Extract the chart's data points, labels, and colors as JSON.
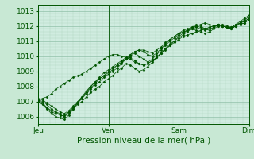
{
  "bg_color": "#c8e8d4",
  "plot_bg_color": "#d0ece0",
  "grid_color_minor": "#b0d8c0",
  "grid_color_major": "#90c0a8",
  "line_color": "#005500",
  "xlabel": "Pression niveau de la mer( hPa )",
  "xlabel_fontsize": 7.5,
  "ylim": [
    1005.5,
    1013.4
  ],
  "yticks": [
    1006,
    1007,
    1008,
    1009,
    1010,
    1011,
    1012,
    1013
  ],
  "xtick_labels": [
    "Jeu",
    "Ven",
    "Sam",
    "Dim"
  ],
  "xtick_positions": [
    0,
    96,
    192,
    288
  ],
  "total_hours": 288,
  "tick_fontsize": 6.5,
  "series": [
    [
      1007.1,
      1007.0,
      1006.8,
      1006.5,
      1006.3,
      1006.1,
      1006.0,
      1006.2,
      1006.5,
      1006.8,
      1007.0,
      1007.3,
      1007.6,
      1007.8,
      1008.0,
      1008.3,
      1008.5,
      1008.7,
      1009.0,
      1009.2,
      1009.5,
      1009.4,
      1009.2,
      1009.0,
      1009.1,
      1009.3,
      1009.6,
      1009.9,
      1010.2,
      1010.5,
      1010.7,
      1011.0,
      1011.3,
      1011.5,
      1011.7,
      1011.9,
      1012.1,
      1012.0,
      1011.8,
      1011.7,
      1011.9,
      1012.1,
      1012.0,
      1011.9,
      1011.8,
      1012.0,
      1012.2,
      1012.4,
      1012.6
    ],
    [
      1007.1,
      1006.9,
      1006.6,
      1006.3,
      1006.2,
      1006.1,
      1006.0,
      1006.3,
      1006.6,
      1006.9,
      1007.2,
      1007.5,
      1007.8,
      1008.1,
      1008.3,
      1008.6,
      1008.8,
      1009.0,
      1009.2,
      1009.5,
      1009.8,
      1010.0,
      1010.2,
      1010.0,
      1009.8,
      1009.6,
      1009.8,
      1010.1,
      1010.4,
      1010.7,
      1011.0,
      1011.2,
      1011.4,
      1011.6,
      1011.7,
      1011.8,
      1011.7,
      1011.6,
      1011.5,
      1011.6,
      1011.8,
      1012.0,
      1012.1,
      1012.0,
      1011.9,
      1012.1,
      1012.3,
      1012.5,
      1012.7
    ],
    [
      1007.0,
      1006.8,
      1006.5,
      1006.2,
      1006.0,
      1005.9,
      1005.8,
      1006.1,
      1006.5,
      1006.9,
      1007.3,
      1007.7,
      1008.0,
      1008.3,
      1008.5,
      1008.7,
      1008.9,
      1009.1,
      1009.4,
      1009.6,
      1009.8,
      1010.1,
      1010.3,
      1010.4,
      1010.3,
      1010.1,
      1010.0,
      1010.2,
      1010.5,
      1010.8,
      1011.1,
      1011.3,
      1011.5,
      1011.7,
      1011.8,
      1011.9,
      1012.0,
      1011.9,
      1011.8,
      1011.9,
      1012.0,
      1012.1,
      1012.0,
      1011.9,
      1011.8,
      1012.0,
      1012.2,
      1012.3,
      1012.5
    ],
    [
      1007.2,
      1007.1,
      1006.9,
      1006.7,
      1006.5,
      1006.3,
      1006.2,
      1006.4,
      1006.7,
      1007.0,
      1007.3,
      1007.6,
      1007.9,
      1008.2,
      1008.5,
      1008.7,
      1009.0,
      1009.2,
      1009.4,
      1009.6,
      1009.8,
      1009.9,
      1009.7,
      1009.5,
      1009.4,
      1009.5,
      1009.7,
      1009.9,
      1010.2,
      1010.5,
      1010.8,
      1011.0,
      1011.2,
      1011.4,
      1011.6,
      1011.8,
      1012.0,
      1012.1,
      1012.2,
      1012.1,
      1012.0,
      1012.1,
      1012.0,
      1011.9,
      1011.9,
      1012.1,
      1012.2,
      1012.3,
      1012.5
    ],
    [
      1007.1,
      1007.2,
      1007.3,
      1007.5,
      1007.8,
      1008.0,
      1008.2,
      1008.4,
      1008.6,
      1008.7,
      1008.8,
      1009.0,
      1009.2,
      1009.4,
      1009.6,
      1009.8,
      1010.0,
      1010.1,
      1010.1,
      1010.0,
      1009.9,
      1009.8,
      1009.6,
      1009.5,
      1009.4,
      1009.5,
      1009.7,
      1009.9,
      1010.2,
      1010.4,
      1010.7,
      1010.9,
      1011.1,
      1011.3,
      1011.4,
      1011.5,
      1011.6,
      1011.7,
      1011.8,
      1011.9,
      1012.0,
      1012.0,
      1012.0,
      1011.9,
      1011.9,
      1012.0,
      1012.1,
      1012.2,
      1012.4
    ],
    [
      1007.0,
      1006.8,
      1006.6,
      1006.4,
      1006.3,
      1006.2,
      1006.1,
      1006.3,
      1006.6,
      1006.9,
      1007.2,
      1007.6,
      1008.0,
      1008.3,
      1008.6,
      1008.9,
      1009.1,
      1009.3,
      1009.5,
      1009.7,
      1009.9,
      1010.1,
      1010.3,
      1010.4,
      1010.4,
      1010.3,
      1010.2,
      1010.4,
      1010.6,
      1010.9,
      1011.1,
      1011.3,
      1011.5,
      1011.6,
      1011.7,
      1011.8,
      1011.9,
      1011.8,
      1011.7,
      1011.8,
      1011.9,
      1012.1,
      1012.0,
      1011.9,
      1011.8,
      1012.0,
      1012.1,
      1012.2,
      1012.4
    ]
  ],
  "marker": "D",
  "markersize": 1.5,
  "linewidth": 0.5
}
